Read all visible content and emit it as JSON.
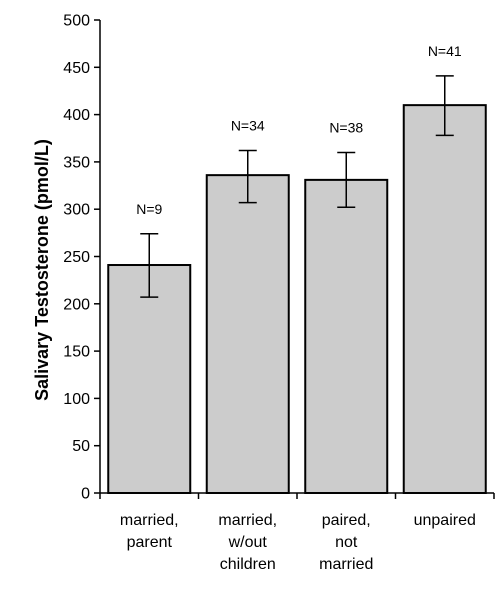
{
  "chart_data": {
    "type": "bar",
    "title": "",
    "xlabel": "",
    "ylabel": "Salivary Testosterone (pmol/L)",
    "ylim": [
      0,
      500
    ],
    "yticks": [
      0,
      50,
      100,
      150,
      200,
      250,
      300,
      350,
      400,
      450,
      500
    ],
    "grid": false,
    "categories": [
      [
        "married,",
        "parent"
      ],
      [
        "married,",
        "w/out",
        "children"
      ],
      [
        "paired,",
        "not",
        "married"
      ],
      [
        "unpaired"
      ]
    ],
    "values": [
      241,
      336,
      331,
      410
    ],
    "error_low": [
      207,
      307,
      302,
      378
    ],
    "error_high": [
      274,
      362,
      360,
      441
    ],
    "annotations": [
      "N=9",
      "N=34",
      "N=38",
      "N=41"
    ],
    "colors": {
      "bar_fill": "#cccccc",
      "bar_stroke": "#000000"
    }
  }
}
